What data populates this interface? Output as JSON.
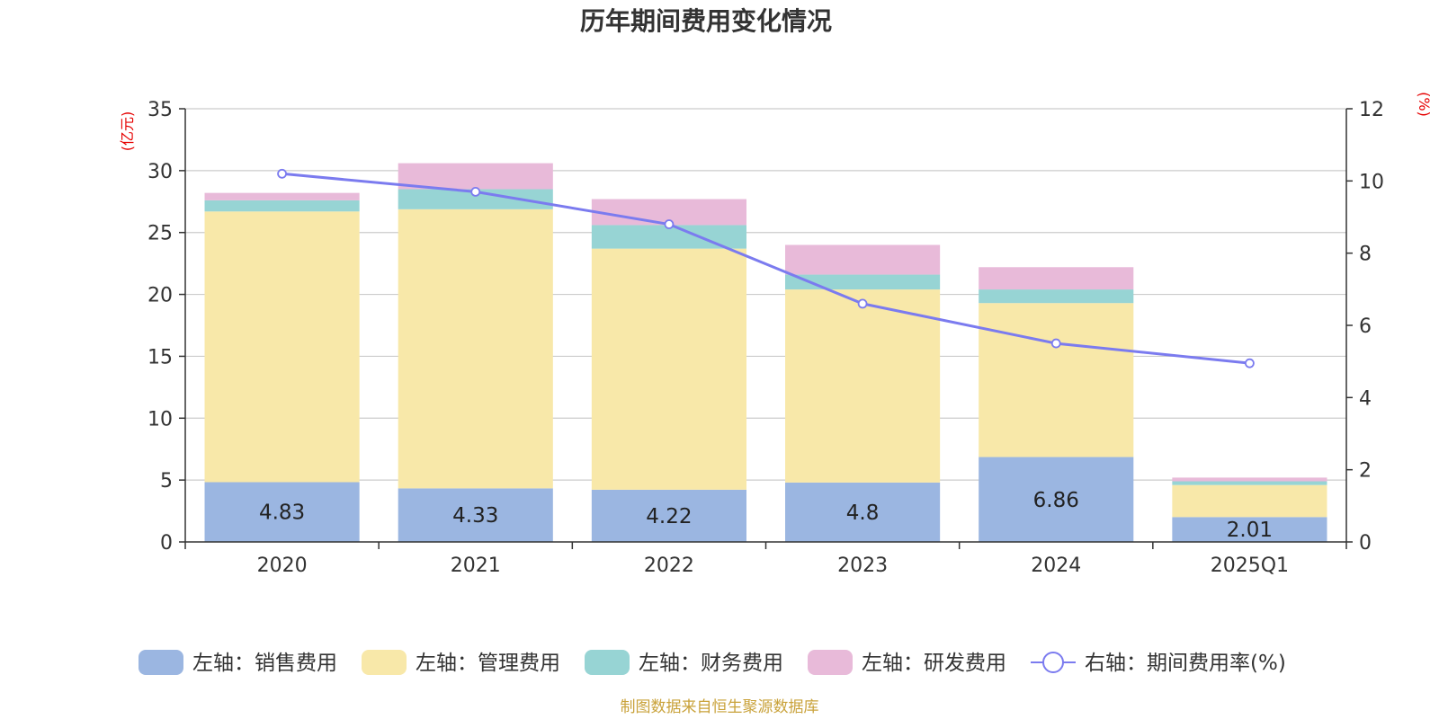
{
  "title": "历年期间费用变化情况",
  "footer": "制图数据来自恒生聚源数据库",
  "left_unit": "(亿元)",
  "right_unit": "(%)",
  "chart_data": {
    "type": "bar",
    "stacked": true,
    "categories": [
      "2020",
      "2021",
      "2022",
      "2023",
      "2024",
      "2025Q1"
    ],
    "series": [
      {
        "name": "左轴：销售费用",
        "axis": "left",
        "color": "#9bb6e1",
        "values": [
          4.83,
          4.33,
          4.22,
          4.8,
          6.86,
          2.01
        ],
        "labels": [
          "4.83",
          "4.33",
          "4.22",
          "4.8",
          "6.86",
          "2.01"
        ]
      },
      {
        "name": "左轴：管理费用",
        "axis": "left",
        "color": "#f8e8a9",
        "values": [
          21.87,
          22.55,
          19.48,
          15.6,
          12.44,
          2.59
        ]
      },
      {
        "name": "左轴：财务费用",
        "axis": "left",
        "color": "#97d4d4",
        "values": [
          0.9,
          1.62,
          1.9,
          1.2,
          1.1,
          0.3
        ]
      },
      {
        "name": "左轴：研发费用",
        "axis": "left",
        "color": "#e8bad9",
        "values": [
          0.6,
          2.1,
          2.1,
          2.4,
          1.8,
          0.3
        ]
      },
      {
        "name": "右轴：期间费用率(%)",
        "axis": "right",
        "type": "line",
        "color": "#7b7bef",
        "values": [
          10.2,
          9.7,
          8.8,
          6.6,
          5.5,
          4.95
        ]
      }
    ],
    "y_left": {
      "min": 0,
      "max": 35,
      "ticks": [
        "0",
        "5",
        "10",
        "15",
        "20",
        "25",
        "30",
        "35"
      ]
    },
    "y_right": {
      "min": 0,
      "max": 12,
      "ticks": [
        "0",
        "2",
        "4",
        "6",
        "8",
        "10",
        "12"
      ]
    },
    "grid": true,
    "legend_position": "bottom"
  }
}
